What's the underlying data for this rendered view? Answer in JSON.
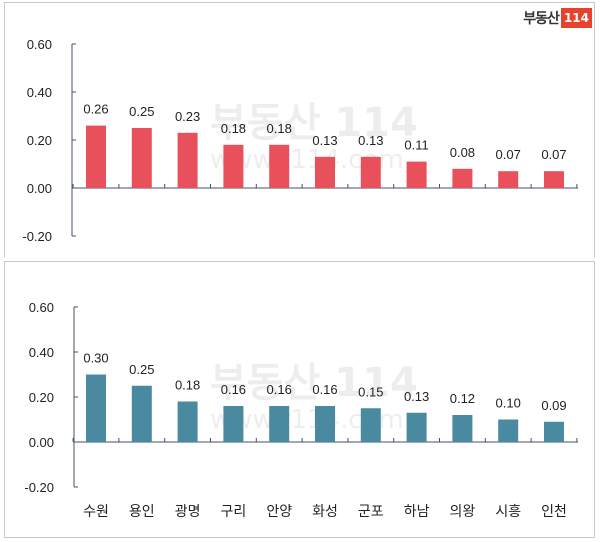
{
  "logo": {
    "text": "부동산",
    "box": "114"
  },
  "watermark": {
    "brand": "부동산 114",
    "url": "www.r114.com"
  },
  "chart_data": [
    {
      "type": "bar",
      "values": [
        0.26,
        0.25,
        0.23,
        0.18,
        0.18,
        0.13,
        0.13,
        0.11,
        0.08,
        0.07,
        0.07
      ],
      "data_labels": [
        "0.26",
        "0.25",
        "0.23",
        "0.18",
        "0.18",
        "0.13",
        "0.13",
        "0.11",
        "0.08",
        "0.07",
        "0.07"
      ],
      "yticks": [
        "0.60",
        "0.40",
        "0.20",
        "0.00",
        "-0.20"
      ],
      "ylim": [
        -0.2,
        0.6
      ],
      "color": "#e8505b",
      "grid": false
    },
    {
      "type": "bar",
      "categories": [
        "수원",
        "용인",
        "광명",
        "구리",
        "안양",
        "화성",
        "군포",
        "하남",
        "의왕",
        "시흥",
        "인천"
      ],
      "values": [
        0.3,
        0.25,
        0.18,
        0.16,
        0.16,
        0.16,
        0.15,
        0.13,
        0.12,
        0.1,
        0.09
      ],
      "data_labels": [
        "0.30",
        "0.25",
        "0.18",
        "0.16",
        "0.16",
        "0.16",
        "0.15",
        "0.13",
        "0.12",
        "0.10",
        "0.09"
      ],
      "yticks": [
        "0.60",
        "0.40",
        "0.20",
        "0.00",
        "-0.20"
      ],
      "ylim": [
        -0.2,
        0.6
      ],
      "color": "#4a8aa0",
      "grid": false
    }
  ]
}
